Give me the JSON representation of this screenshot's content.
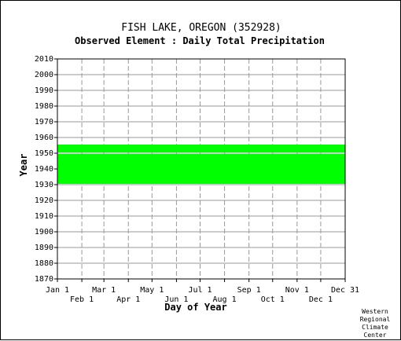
{
  "chart_data": {
    "type": "heatmap",
    "title": "FISH LAKE, OREGON   (352928)",
    "subtitle": "Observed Element : Daily Total Precipitation",
    "xlabel": "Day of Year",
    "ylabel": "Year",
    "ylim": [
      1870,
      2010
    ],
    "yticks": [
      2010,
      2000,
      1990,
      1980,
      1970,
      1960,
      1950,
      1940,
      1930,
      1920,
      1910,
      1900,
      1890,
      1880,
      1870
    ],
    "xticks_top": [
      {
        "label": "Jan 1",
        "day": 1
      },
      {
        "label": "Mar 1",
        "day": 60
      },
      {
        "label": "May 1",
        "day": 121
      },
      {
        "label": "Jul 1",
        "day": 182
      },
      {
        "label": "Sep 1",
        "day": 244
      },
      {
        "label": "Nov 1",
        "day": 305
      },
      {
        "label": "Dec 31",
        "day": 366
      }
    ],
    "xticks_bottom": [
      {
        "label": "Feb 1",
        "day": 32
      },
      {
        "label": "Apr 1",
        "day": 91
      },
      {
        "label": "Jun 1",
        "day": 152
      },
      {
        "label": "Aug 1",
        "day": 213
      },
      {
        "label": "Oct 1",
        "day": 274
      },
      {
        "label": "Dec 1",
        "day": 335
      }
    ],
    "grid": true,
    "data_color": "#00ff00",
    "data_years": [
      1931,
      1955
    ],
    "missing_years": [
      1950
    ]
  },
  "credit": [
    "Western",
    "Regional",
    "Climate",
    "Center"
  ]
}
